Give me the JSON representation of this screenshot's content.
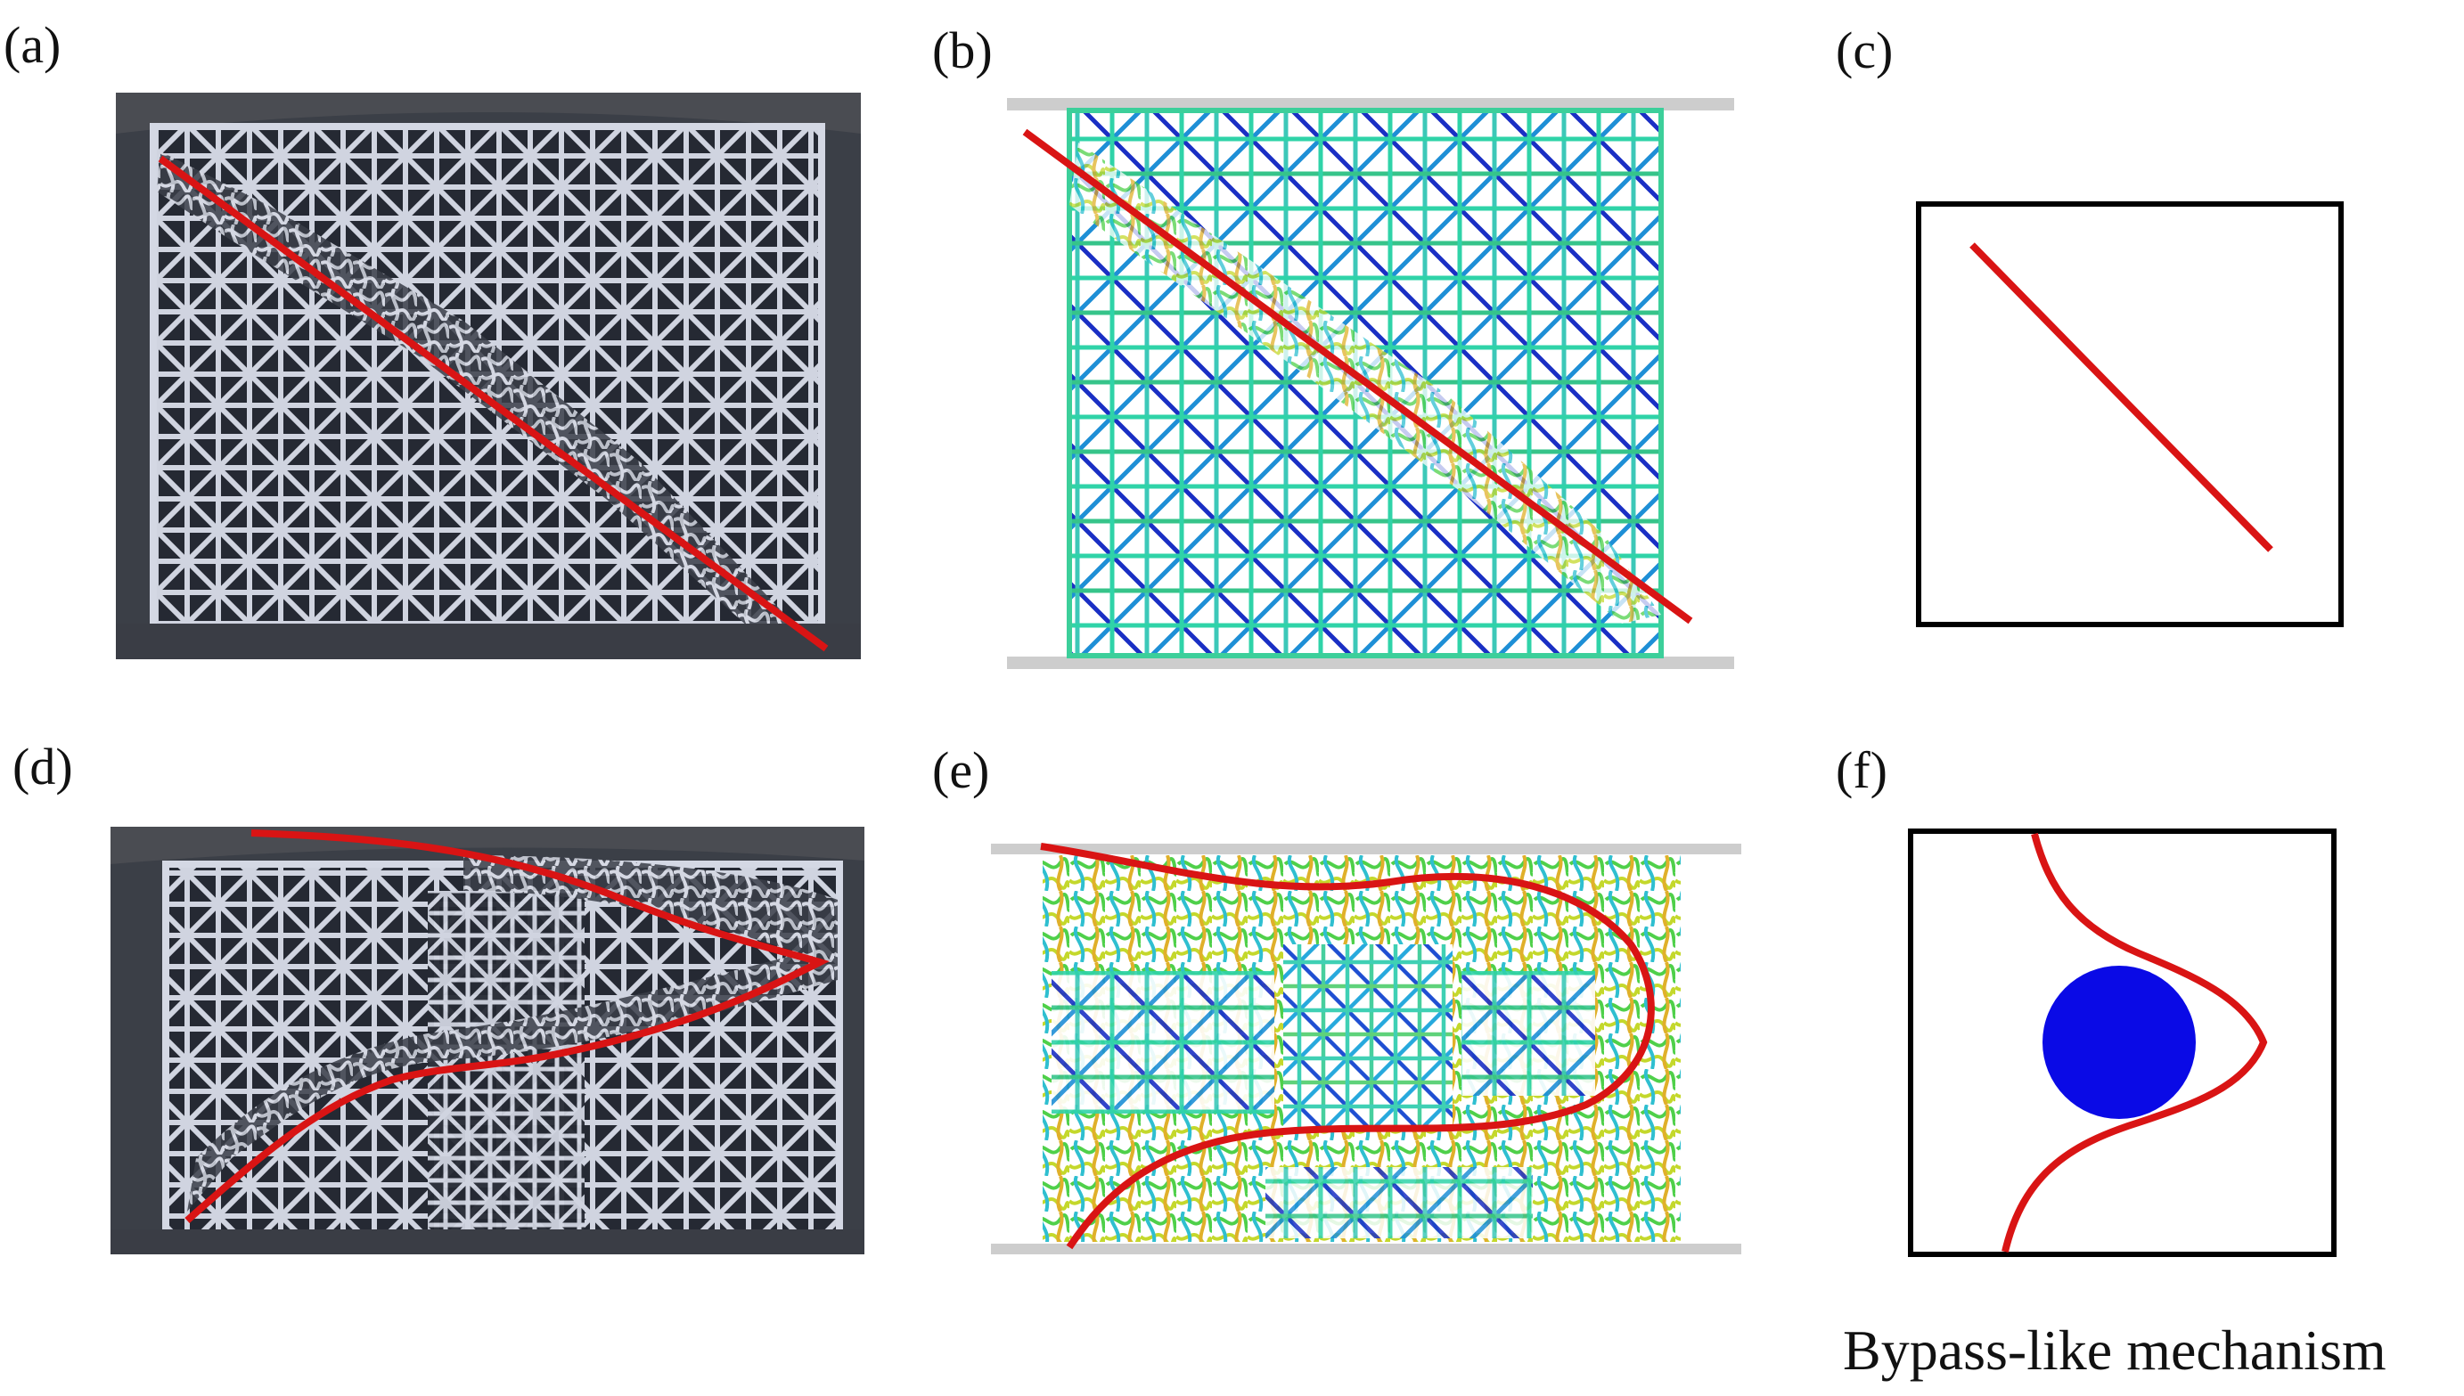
{
  "figure": {
    "panels": {
      "a": {
        "label": "(a)",
        "kind": "photo",
        "fracture": "diagonal"
      },
      "b": {
        "label": "(b)",
        "kind": "simulation",
        "fracture": "diagonal"
      },
      "c": {
        "label": "(c)",
        "kind": "schematic",
        "fracture": "diagonal"
      },
      "d": {
        "label": "(d)",
        "kind": "photo",
        "fracture": "bypass"
      },
      "e": {
        "label": "(e)",
        "kind": "simulation",
        "fracture": "bypass"
      },
      "f": {
        "label": "(f)",
        "kind": "schematic",
        "fracture": "bypass"
      }
    },
    "caption_f": "Bypass-like mechanism",
    "colors": {
      "crack_line": "#d91414",
      "inclusion": "#0a0ae6",
      "lattice_photo": "#d2d6e2",
      "photo_background": "#30333b",
      "platen": "#cfcfcf"
    }
  }
}
